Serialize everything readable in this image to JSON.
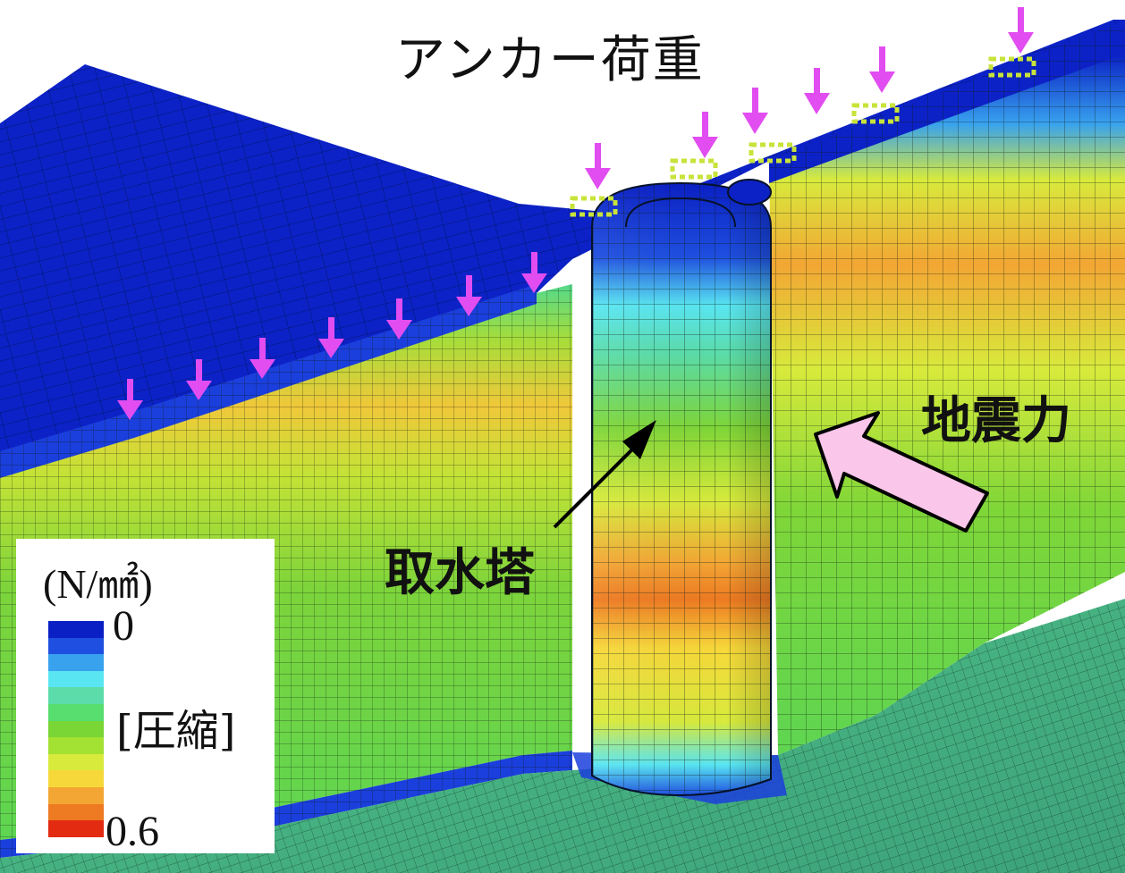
{
  "figure": {
    "title": "アンカー荷重",
    "labels": {
      "tower": "取水塔",
      "seismic": "地震力"
    },
    "legend": {
      "unit": "(N/㎟)",
      "min": "0",
      "max": "0.6",
      "kind": "[圧縮]",
      "colors": [
        "#0a1fc4",
        "#1e4fe0",
        "#38a2ee",
        "#59e6f2",
        "#5bdca8",
        "#57de6e",
        "#79d635",
        "#a3e132",
        "#d8ea3c",
        "#f7d83a",
        "#f3a634",
        "#ee7a22",
        "#e32b12"
      ]
    },
    "colors": {
      "load_arrow": "#e14df0",
      "seismic_arrow_fill": "#fac6ea"
    }
  }
}
